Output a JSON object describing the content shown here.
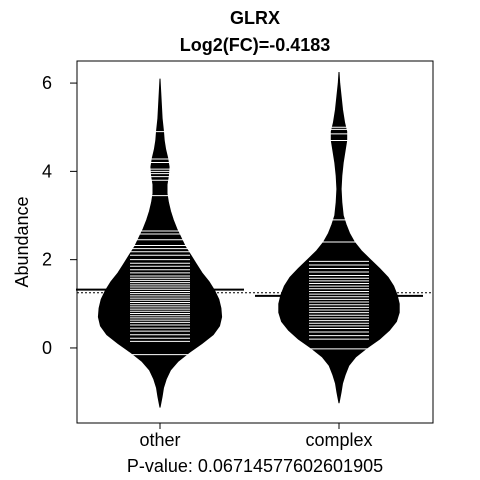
{
  "chart_data": {
    "type": "beanplot",
    "title": "GLRX",
    "subtitle": "Log2(FC)=-0.4183",
    "ylabel": "Abundance",
    "xlabel": "",
    "categories": [
      "other",
      "complex"
    ],
    "footer": "P-value: 0.0671457760260190​5",
    "ylim": [
      -1.7,
      6.5
    ],
    "yticks": [
      0,
      2,
      4,
      6
    ],
    "yticklabels": [
      "0",
      "2",
      "4",
      "6"
    ],
    "overall_mean": 1.25,
    "grid": false,
    "legend": "none",
    "fill_color": "#000000",
    "line_color": "#ffffff",
    "series": [
      {
        "category": "other",
        "mean": 1.32,
        "density": [
          [
            -1.35,
            0.0
          ],
          [
            -1.1,
            0.03
          ],
          [
            -0.9,
            0.05
          ],
          [
            -0.7,
            0.09
          ],
          [
            -0.5,
            0.15
          ],
          [
            -0.3,
            0.26
          ],
          [
            -0.1,
            0.42
          ],
          [
            0.1,
            0.6
          ],
          [
            0.3,
            0.76
          ],
          [
            0.5,
            0.85
          ],
          [
            0.7,
            0.88
          ],
          [
            0.9,
            0.87
          ],
          [
            1.1,
            0.84
          ],
          [
            1.3,
            0.78
          ],
          [
            1.5,
            0.7
          ],
          [
            1.7,
            0.6
          ],
          [
            1.9,
            0.52
          ],
          [
            2.1,
            0.44
          ],
          [
            2.3,
            0.36
          ],
          [
            2.5,
            0.3
          ],
          [
            2.7,
            0.24
          ],
          [
            2.9,
            0.19
          ],
          [
            3.1,
            0.15
          ],
          [
            3.3,
            0.12
          ],
          [
            3.5,
            0.1
          ],
          [
            3.7,
            0.1
          ],
          [
            3.9,
            0.12
          ],
          [
            4.1,
            0.13
          ],
          [
            4.3,
            0.11
          ],
          [
            4.5,
            0.08
          ],
          [
            4.7,
            0.06
          ],
          [
            4.9,
            0.05
          ],
          [
            5.2,
            0.03
          ],
          [
            5.5,
            0.02
          ],
          [
            5.8,
            0.01
          ],
          [
            6.1,
            0.0
          ]
        ],
        "observations": [
          -0.15,
          0.15,
          0.22,
          0.3,
          0.38,
          0.45,
          0.52,
          0.58,
          0.63,
          0.68,
          0.73,
          0.78,
          0.83,
          0.88,
          0.93,
          0.98,
          1.03,
          1.08,
          1.13,
          1.18,
          1.23,
          1.28,
          1.33,
          1.38,
          1.43,
          1.48,
          1.53,
          1.58,
          1.63,
          1.7,
          1.77,
          1.85,
          1.92,
          2.0,
          2.1,
          2.18,
          2.25,
          2.32,
          2.45,
          2.58,
          2.65,
          3.45,
          3.8,
          3.88,
          3.95,
          4.0,
          4.05,
          4.2,
          4.28,
          4.9
        ]
      },
      {
        "category": "complex",
        "mean": 1.18,
        "density": [
          [
            -1.25,
            0.0
          ],
          [
            -1.0,
            0.03
          ],
          [
            -0.8,
            0.05
          ],
          [
            -0.6,
            0.09
          ],
          [
            -0.4,
            0.14
          ],
          [
            -0.2,
            0.24
          ],
          [
            0.0,
            0.4
          ],
          [
            0.2,
            0.58
          ],
          [
            0.4,
            0.72
          ],
          [
            0.6,
            0.82
          ],
          [
            0.8,
            0.86
          ],
          [
            1.0,
            0.86
          ],
          [
            1.2,
            0.83
          ],
          [
            1.4,
            0.78
          ],
          [
            1.6,
            0.7
          ],
          [
            1.8,
            0.58
          ],
          [
            2.0,
            0.45
          ],
          [
            2.2,
            0.32
          ],
          [
            2.4,
            0.22
          ],
          [
            2.6,
            0.15
          ],
          [
            2.8,
            0.1
          ],
          [
            3.0,
            0.06
          ],
          [
            3.3,
            0.04
          ],
          [
            3.6,
            0.03
          ],
          [
            3.9,
            0.04
          ],
          [
            4.2,
            0.06
          ],
          [
            4.5,
            0.09
          ],
          [
            4.7,
            0.11
          ],
          [
            4.9,
            0.11
          ],
          [
            5.1,
            0.08
          ],
          [
            5.4,
            0.05
          ],
          [
            5.7,
            0.03
          ],
          [
            6.0,
            0.01
          ],
          [
            6.25,
            0.0
          ]
        ],
        "observations": [
          -0.02,
          0.2,
          0.28,
          0.36,
          0.44,
          0.5,
          0.56,
          0.62,
          0.68,
          0.74,
          0.8,
          0.86,
          0.92,
          0.98,
          1.04,
          1.1,
          1.16,
          1.22,
          1.28,
          1.34,
          1.4,
          1.46,
          1.52,
          1.58,
          1.64,
          1.72,
          1.8,
          1.88,
          1.96,
          2.4,
          2.9,
          4.7,
          4.85,
          4.95,
          5.0
        ]
      }
    ]
  }
}
